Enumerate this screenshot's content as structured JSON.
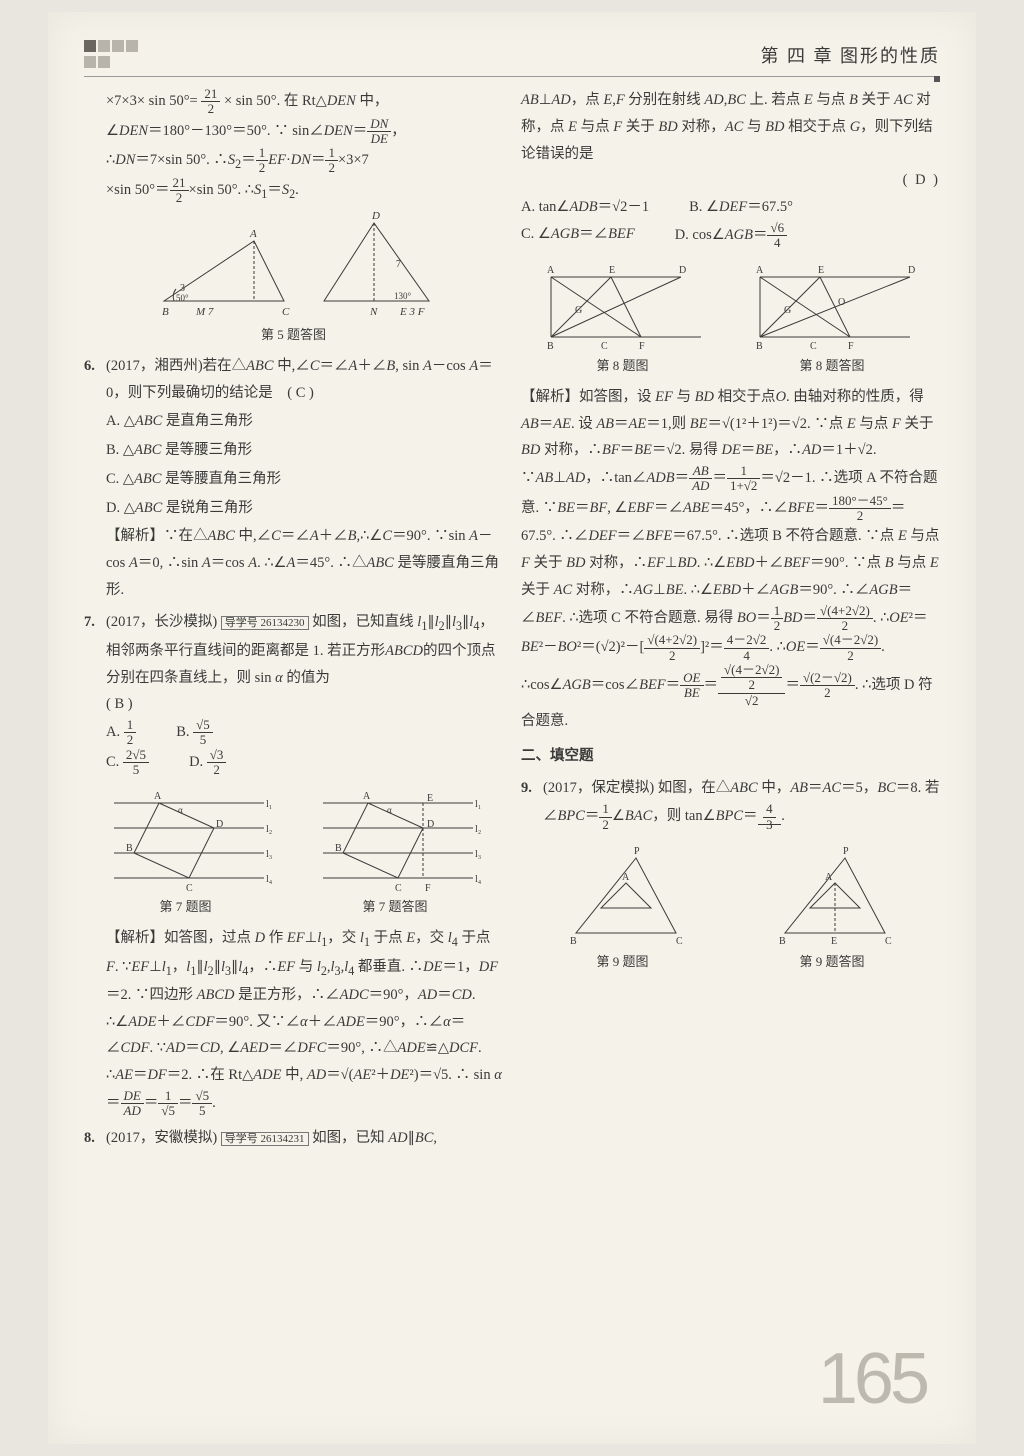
{
  "header": {
    "chapter": "第 四 章   图形的性质"
  },
  "pagenum": "165",
  "left": {
    "pre5_line1": "×7×3× sin 50°= <span class='frac'><span class='n'>21</span><span class='d'>2</span></span> × sin 50°. 在 Rt△<i>DEN</i> 中，",
    "pre5_line2": "∠<i>DEN</i>＝180°－130°＝50°. ∵ sin∠<i>DEN</i>＝<span class='frac'><span class='n'><i>DN</i></span><span class='d'><i>DE</i></span></span>，",
    "pre5_line3": "∴<i>DN</i>＝7×sin 50°. ∴<i>S</i><sub>2</sub>＝<span class='frac'><span class='n'>1</span><span class='d'>2</span></span><i>EF</i>·<i>DN</i>＝<span class='frac'><span class='n'>1</span><span class='d'>2</span></span>×3×7",
    "pre5_line4": "×sin 50°＝<span class='frac'><span class='n'>21</span><span class='d'>2</span></span>×sin 50°. ∴<i>S</i><sub>1</sub>＝<i>S</i><sub>2</sub>.",
    "fig5_caption": "第 5 题答图",
    "q6_num": "6.",
    "q6_text": "(2017，湘西州)若在△<i>ABC</i> 中,∠<i>C</i>＝∠<i>A</i>＋∠<i>B</i>, sin <i>A</i>－cos <i>A</i>＝0，则下列最确切的结论是　( C )",
    "q6_A": "A. △<i>ABC</i> 是直角三角形",
    "q6_B": "B. △<i>ABC</i> 是等腰三角形",
    "q6_C": "C. △<i>ABC</i> 是等腰直角三角形",
    "q6_D": "D. △<i>ABC</i> 是锐角三角形",
    "q6_analysis": "【解析】∵在△<i>ABC</i> 中,∠<i>C</i>＝∠<i>A</i>＋∠<i>B</i>,∴∠<i>C</i>＝90°. ∵sin <i>A</i>－cos <i>A</i>＝0, ∴sin <i>A</i>＝cos <i>A</i>. ∴∠<i>A</i>＝45°. ∴△<i>ABC</i> 是等腰直角三角形.",
    "q7_num": "7.",
    "q7_text": "(2017，长沙模拟) <span class='box'>导学号 26134230</span> 如图，已知直线 <i>l</i><sub>1</sub>∥<i>l</i><sub>2</sub>∥<i>l</i><sub>3</sub>∥<i>l</i><sub>4</sub>，相邻两条平行直线间的距离都是 1. 若正方形<i>ABCD</i>的四个顶点分别在四条直线上，则 sin <i>α</i> 的值为　　　　　　　　　　　　　( B )",
    "q7_A": "A. <span class='frac'><span class='n'>1</span><span class='d'>2</span></span>",
    "q7_B": "B. <span class='frac'><span class='n'>√5</span><span class='d'>5</span></span>",
    "q7_C": "C. <span class='frac'><span class='n'>2√5</span><span class='d'>5</span></span>",
    "q7_D": "D. <span class='frac'><span class='n'>√3</span><span class='d'>2</span></span>",
    "fig7_cap1": "第 7 题图",
    "fig7_cap2": "第 7 题答图",
    "q7_analysis": "【解析】如答图，过点 <i>D</i> 作 <i>EF</i>⊥<i>l</i><sub>1</sub>，交 <i>l</i><sub>1</sub> 于点 <i>E</i>，交 <i>l</i><sub>4</sub> 于点 <i>F</i>. ∵<i>EF</i>⊥<i>l</i><sub>1</sub>，<i>l</i><sub>1</sub>∥<i>l</i><sub>2</sub>∥<i>l</i><sub>3</sub>∥<i>l</i><sub>4</sub>，∴<i>EF</i> 与 <i>l</i><sub>2</sub>,<i>l</i><sub>3</sub>,<i>l</i><sub>4</sub> 都垂直. ∴<i>DE</i>＝1，<i>DF</i>＝2. ∵四边形 <i>ABCD</i> 是正方形，∴∠<i>ADC</i>＝90°，<i>AD</i>＝<i>CD</i>. ∴∠<i>ADE</i>＋∠<i>CDF</i>＝90°. 又∵∠<i>α</i>＋∠<i>ADE</i>＝90°，∴∠<i>α</i>＝∠<i>CDF</i>. ∵<i>AD</i>＝<i>CD</i>, ∠<i>AED</i>＝∠<i>DFC</i>＝90°, ∴△<i>ADE</i>≌△<i>DCF</i>. ∴<i>AE</i>＝<i>DF</i>＝2. ∴在 Rt△<i>ADE</i> 中, <i>AD</i>＝√(<i>AE</i>²＋<i>DE</i>²)＝√5. ∴ sin <i>α</i>＝<span class='frac'><span class='n'><i>DE</i></span><span class='d'><i>AD</i></span></span>＝<span class='frac'><span class='n'>1</span><span class='d'>√5</span></span>＝<span class='frac'><span class='n'>√5</span><span class='d'>5</span></span>.",
    "q8_num": "8.",
    "q8_text": "(2017，安徽模拟) <span class='box'>导学号 26134231</span> 如图，已知 <i>AD</i>∥<i>BC</i>,"
  },
  "right": {
    "q8_cont": "<i>AB</i>⊥<i>AD</i>，点 <i>E</i>,<i>F</i> 分别在射线 <i>AD</i>,<i>BC</i> 上. 若点 <i>E</i> 与点 <i>B</i> 关于 <i>AC</i> 对称，点 <i>E</i> 与点 <i>F</i> 关于 <i>BD</i> 对称，<i>AC</i> 与 <i>BD</i> 相交于点 <i>G</i>，则下列结论错误的是",
    "q8_ans": "( D )",
    "q8_A": "A. tan∠<i>ADB</i>＝√2－1",
    "q8_B": "B. ∠<i>DEF</i>＝67.5°",
    "q8_C": "C. ∠<i>AGB</i>＝∠<i>BEF</i>",
    "q8_D": "D. cos∠<i>AGB</i>＝<span class='frac'><span class='n'>√6</span><span class='d'>4</span></span>",
    "fig8_cap1": "第 8 题图",
    "fig8_cap2": "第 8 题答图",
    "q8_analysis": "【解析】如答图，设 <i>EF</i> 与 <i>BD</i> 相交于点<i>O</i>. 由轴对称的性质，得 <i>AB</i>＝<i>AE</i>. 设 <i>AB</i>＝<i>AE</i>＝1,则 <i>BE</i>＝√(1²＋1²)＝√2. ∵点 <i>E</i> 与点 <i>F</i> 关于 <i>BD</i> 对称，∴<i>BF</i>＝<i>BE</i>＝√2. 易得 <i>DE</i>＝<i>BE</i>，∴<i>AD</i>＝1＋√2. ∵<i>AB</i>⊥<i>AD</i>，∴tan∠<i>ADB</i>＝<span class='frac'><span class='n'><i>AB</i></span><span class='d'><i>AD</i></span></span>＝<span class='frac'><span class='n'>1</span><span class='d'>1+√2</span></span>＝√2－1. ∴选项 A 不符合题意. ∵<i>BE</i>＝<i>BF</i>, ∠<i>EBF</i>＝∠<i>ABE</i>＝45°，∴∠<i>BFE</i>＝<span class='frac'><span class='n'>180°－45°</span><span class='d'>2</span></span>＝67.5°. ∴∠<i>DEF</i>＝∠<i>BFE</i>＝67.5°. ∴选项 B 不符合题意. ∵点 <i>E</i> 与点 <i>F</i> 关于 <i>BD</i> 对称，∴<i>EF</i>⊥<i>BD</i>. ∴∠<i>EBD</i>＋∠<i>BEF</i>＝90°. ∵点 <i>B</i> 与点 <i>E</i> 关于 <i>AC</i> 对称，∴<i>AG</i>⊥<i>BE</i>. ∴∠<i>EBD</i>＋∠<i>AGB</i>＝90°. ∴∠<i>AGB</i>＝∠<i>BEF</i>. ∴选项 C 不符合题意. 易得 <i>BO</i>＝<span class='frac'><span class='n'>1</span><span class='d'>2</span></span><i>BD</i>＝<span class='frac'><span class='n'>√(4+2√2)</span><span class='d'>2</span></span>. ∴<i>OE</i>²＝<i>BE</i>²－<i>BO</i>²＝(√2)²－[<span class='frac'><span class='n'>√(4+2√2)</span><span class='d'>2</span></span>]²＝<span class='frac'><span class='n'>4－2√2</span><span class='d'>4</span></span>. ∴<i>OE</i>＝<span class='frac'><span class='n'>√(4－2√2)</span><span class='d'>2</span></span>. ∴cos∠<i>AGB</i>＝cos∠<i>BEF</i>＝<span class='frac'><span class='n'><i>OE</i></span><span class='d'><i>BE</i></span></span>＝<span class='frac'><span class='n'><span class='frac'><span class='n'>√(4－2√2)</span><span class='d'>2</span></span></span><span class='d'>√2</span></span>＝<span class='frac'><span class='n'>√(2－√2)</span><span class='d'>2</span></span>. ∴选项 D 符合题意.",
    "section2": "二、填空题",
    "q9_num": "9.",
    "q9_text": "(2017，保定模拟) 如图，在△<i>ABC</i> 中，<i>AB</i>＝<i>AC</i>＝5，<i>BC</i>＝8. 若∠<i>BPC</i>＝<span class='frac'><span class='n'>1</span><span class='d'>2</span></span>∠<i>BAC</i>，则 tan∠<i>BPC</i>＝<span class='underline'> <span class='frac'><span class='n'>4</span><span class='d'>3</span></span> </span>.",
    "fig9_cap1": "第 9 题图",
    "fig9_cap2": "第 9 题答图"
  }
}
